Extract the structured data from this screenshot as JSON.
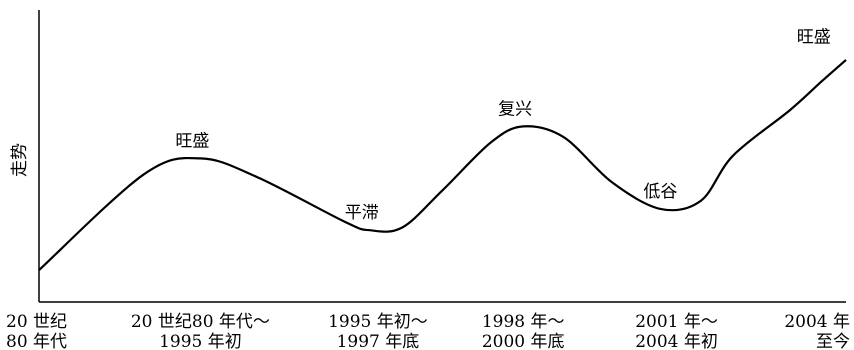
{
  "chart_data": {
    "type": "line",
    "ylabel": "走势",
    "series": [
      {
        "values": [
          0.12,
          0.48,
          0.54,
          0.47,
          0.3,
          0.27,
          0.28,
          0.42,
          0.6,
          0.66,
          0.62,
          0.45,
          0.35,
          0.38,
          0.55,
          0.72,
          0.83,
          0.91
        ]
      }
    ],
    "x_positions": [
      0,
      0.13,
      0.2,
      0.27,
      0.38,
      0.41,
      0.45,
      0.5,
      0.56,
      0.6,
      0.65,
      0.71,
      0.77,
      0.82,
      0.86,
      0.93,
      0.97,
      1.0
    ],
    "ylim": [
      0,
      1
    ],
    "xlim": [
      0,
      1
    ],
    "x_tick_positions": [
      0.0,
      0.2,
      0.42,
      0.6,
      0.79,
      1.0
    ],
    "x_tick_labels": [
      [
        "20 世纪",
        "80 年代"
      ],
      [
        "20 世纪80 年代～",
        "1995 年初"
      ],
      [
        "1995 年初～",
        "1997 年底"
      ],
      [
        "1998 年～",
        "2000 年底"
      ],
      [
        "2001 年～",
        "2004 年初"
      ],
      [
        "2004 年",
        "至今"
      ]
    ],
    "annotations": [
      {
        "text": "旺盛",
        "x": 0.19,
        "y": 0.54
      },
      {
        "text": "平滞",
        "x": 0.4,
        "y": 0.27
      },
      {
        "text": "复兴",
        "x": 0.59,
        "y": 0.66
      },
      {
        "text": "低谷",
        "x": 0.77,
        "y": 0.35
      },
      {
        "text": "旺盛",
        "x": 0.96,
        "y": 0.93
      }
    ],
    "grid": false,
    "legend": "none",
    "line_color": "#000000"
  }
}
